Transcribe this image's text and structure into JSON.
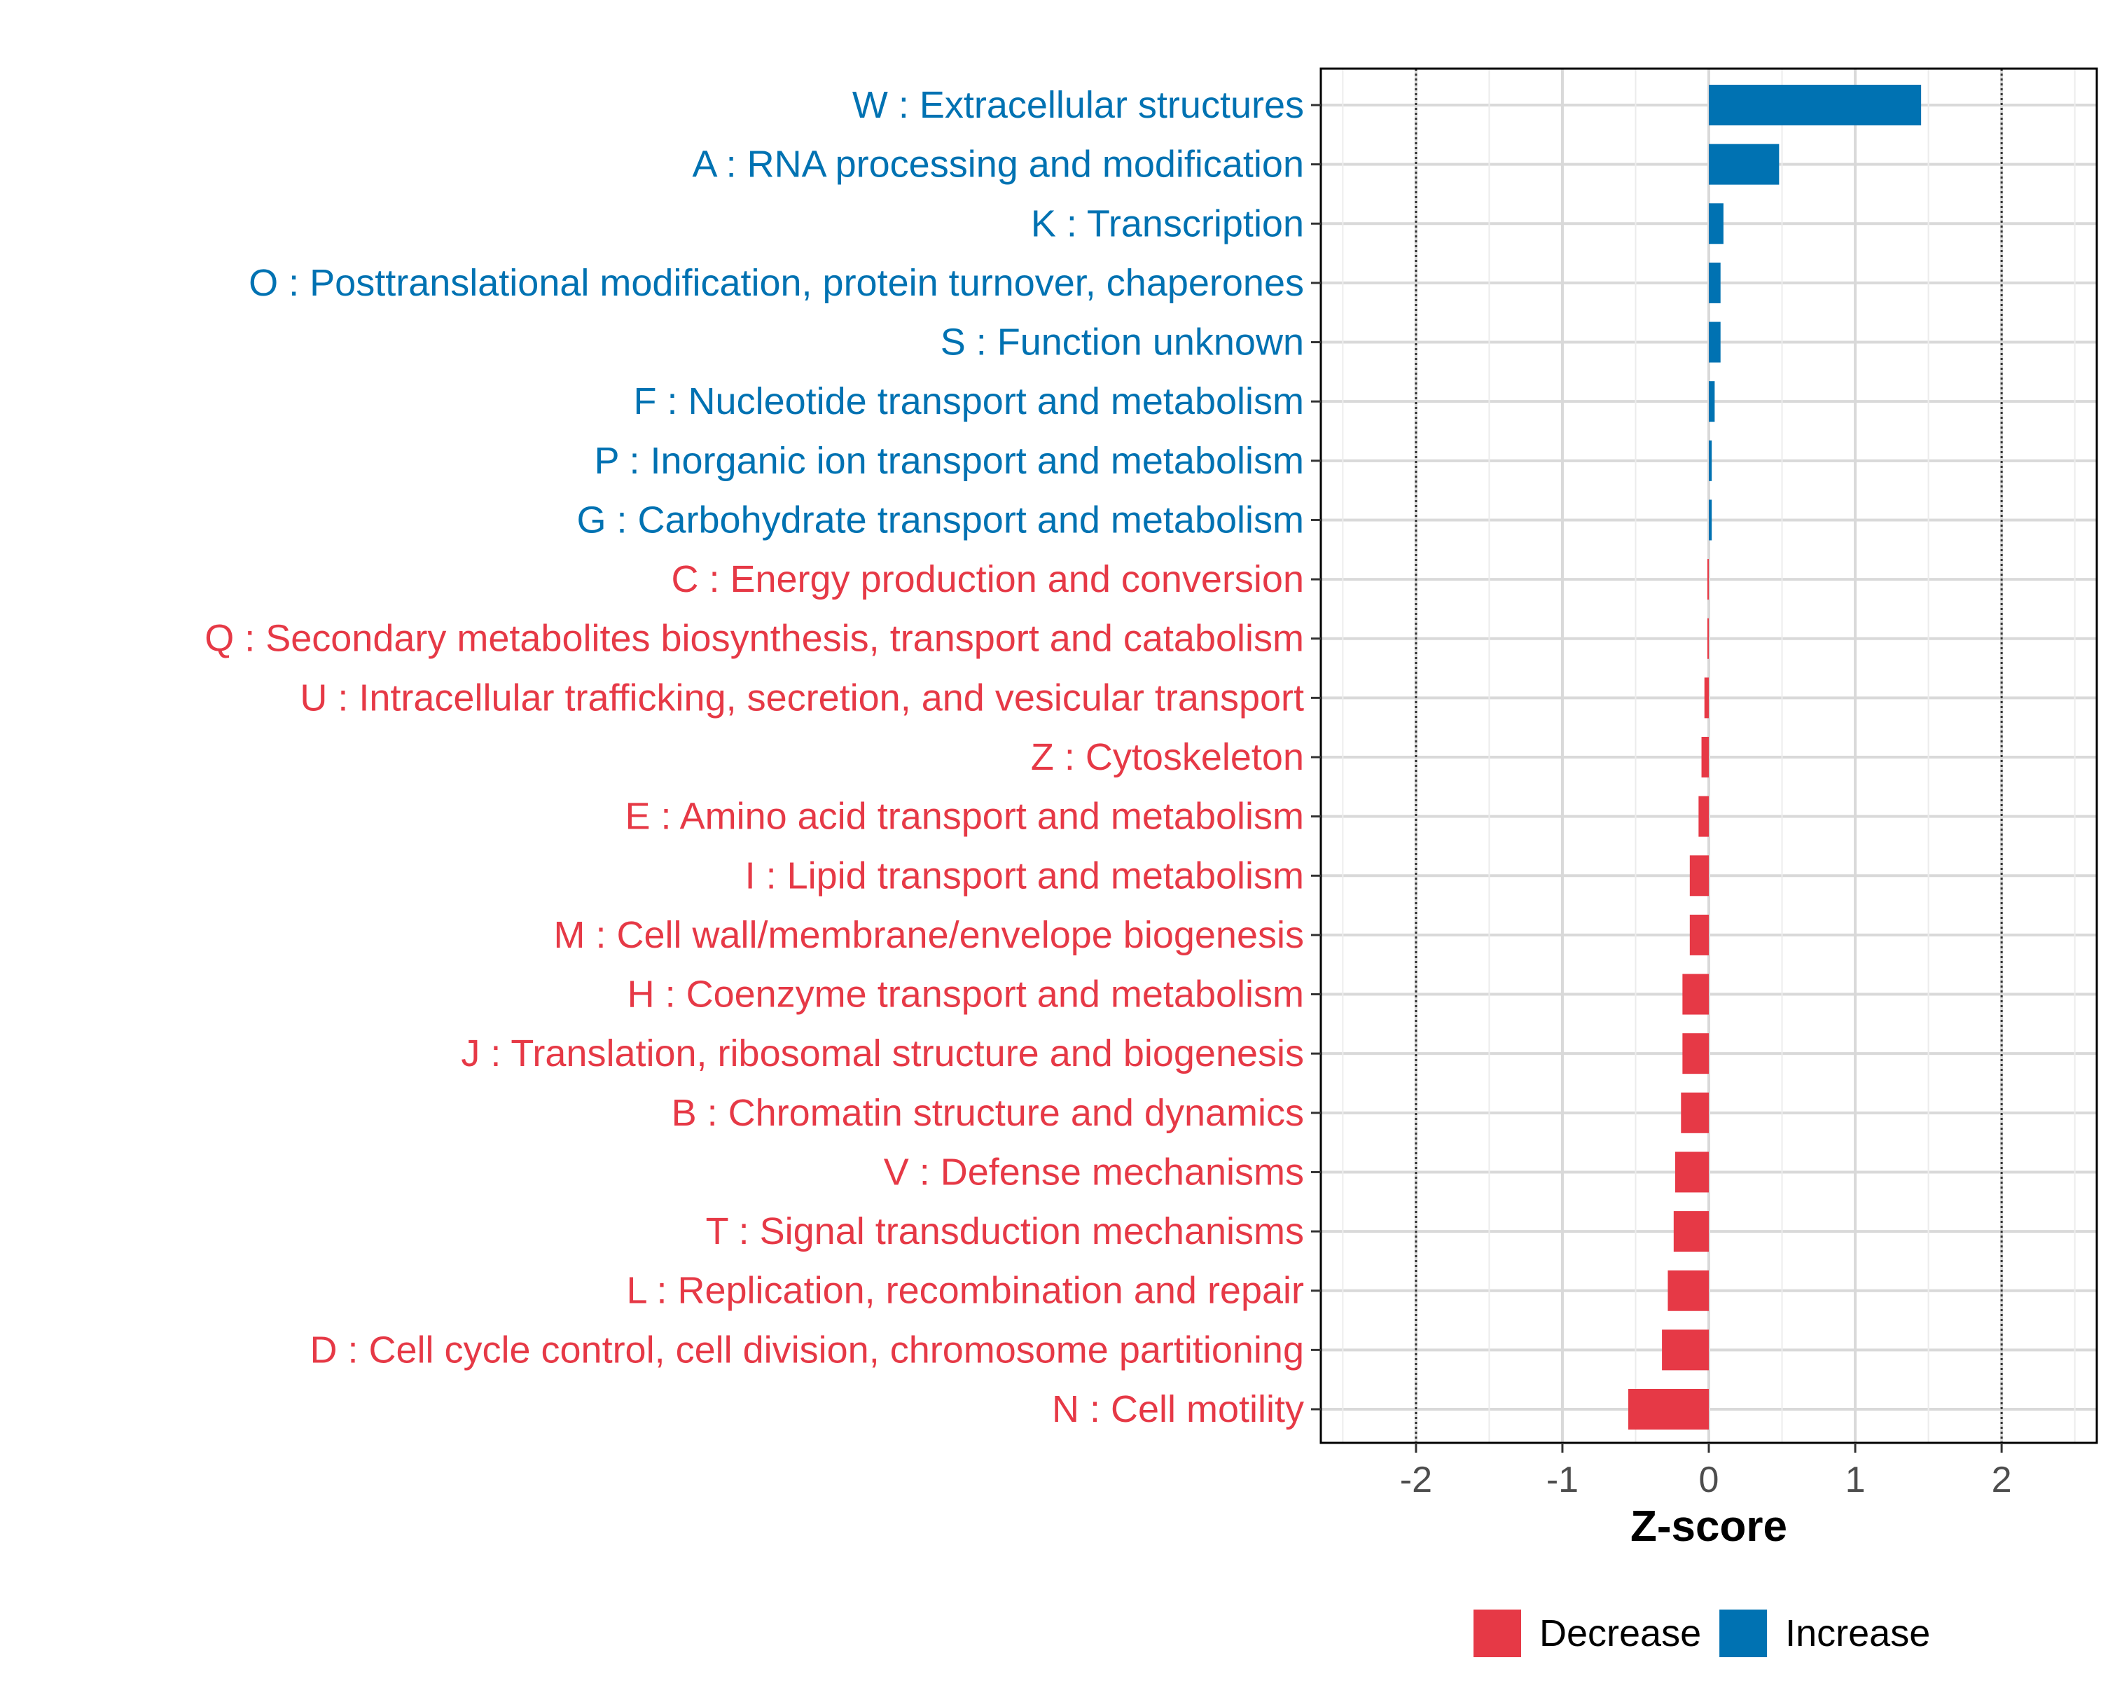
{
  "chart_data": {
    "type": "bar",
    "orientation": "horizontal",
    "xlabel": "Z-score",
    "xlim": [
      -2.65,
      2.65
    ],
    "x_ticks": [
      {
        "value": -2,
        "label": "-2"
      },
      {
        "value": -1,
        "label": "-1"
      },
      {
        "value": 0,
        "label": "0"
      },
      {
        "value": 1,
        "label": "1"
      },
      {
        "value": 2,
        "label": "2"
      }
    ],
    "reference_lines": [
      -2,
      2
    ],
    "grid": true,
    "colors": {
      "Increase": "#0072b2",
      "Decrease": "#e63946"
    },
    "legend": {
      "position": "bottom",
      "entries": [
        {
          "key": "Decrease",
          "label": "Decrease"
        },
        {
          "key": "Increase",
          "label": "Increase"
        }
      ]
    },
    "categories": [
      {
        "label": "W : Extracellular structures",
        "value": 1.45,
        "group": "Increase"
      },
      {
        "label": "A : RNA processing and modification",
        "value": 0.48,
        "group": "Increase"
      },
      {
        "label": "K : Transcription",
        "value": 0.1,
        "group": "Increase"
      },
      {
        "label": "O : Posttranslational modification, protein turnover, chaperones",
        "value": 0.08,
        "group": "Increase"
      },
      {
        "label": "S : Function unknown",
        "value": 0.08,
        "group": "Increase"
      },
      {
        "label": "F : Nucleotide transport and metabolism",
        "value": 0.04,
        "group": "Increase"
      },
      {
        "label": "P : Inorganic ion transport and metabolism",
        "value": 0.02,
        "group": "Increase"
      },
      {
        "label": "G : Carbohydrate transport and metabolism",
        "value": 0.02,
        "group": "Increase"
      },
      {
        "label": "C : Energy production and conversion",
        "value": -0.01,
        "group": "Decrease"
      },
      {
        "label": "Q : Secondary metabolites biosynthesis, transport and catabolism",
        "value": -0.01,
        "group": "Decrease"
      },
      {
        "label": "U : Intracellular trafficking, secretion, and vesicular transport",
        "value": -0.03,
        "group": "Decrease"
      },
      {
        "label": "Z : Cytoskeleton",
        "value": -0.05,
        "group": "Decrease"
      },
      {
        "label": "E : Amino acid transport and metabolism",
        "value": -0.07,
        "group": "Decrease"
      },
      {
        "label": "I : Lipid transport and metabolism",
        "value": -0.13,
        "group": "Decrease"
      },
      {
        "label": "M : Cell wall/membrane/envelope biogenesis",
        "value": -0.13,
        "group": "Decrease"
      },
      {
        "label": "H : Coenzyme transport and metabolism",
        "value": -0.18,
        "group": "Decrease"
      },
      {
        "label": "J : Translation, ribosomal structure and biogenesis",
        "value": -0.18,
        "group": "Decrease"
      },
      {
        "label": "B : Chromatin structure and dynamics",
        "value": -0.19,
        "group": "Decrease"
      },
      {
        "label": "V : Defense mechanisms",
        "value": -0.23,
        "group": "Decrease"
      },
      {
        "label": "T : Signal transduction mechanisms",
        "value": -0.24,
        "group": "Decrease"
      },
      {
        "label": "L : Replication, recombination and repair",
        "value": -0.28,
        "group": "Decrease"
      },
      {
        "label": "D : Cell cycle control, cell division, chromosome partitioning",
        "value": -0.32,
        "group": "Decrease"
      },
      {
        "label": "N : Cell motility",
        "value": -0.55,
        "group": "Decrease"
      }
    ]
  }
}
